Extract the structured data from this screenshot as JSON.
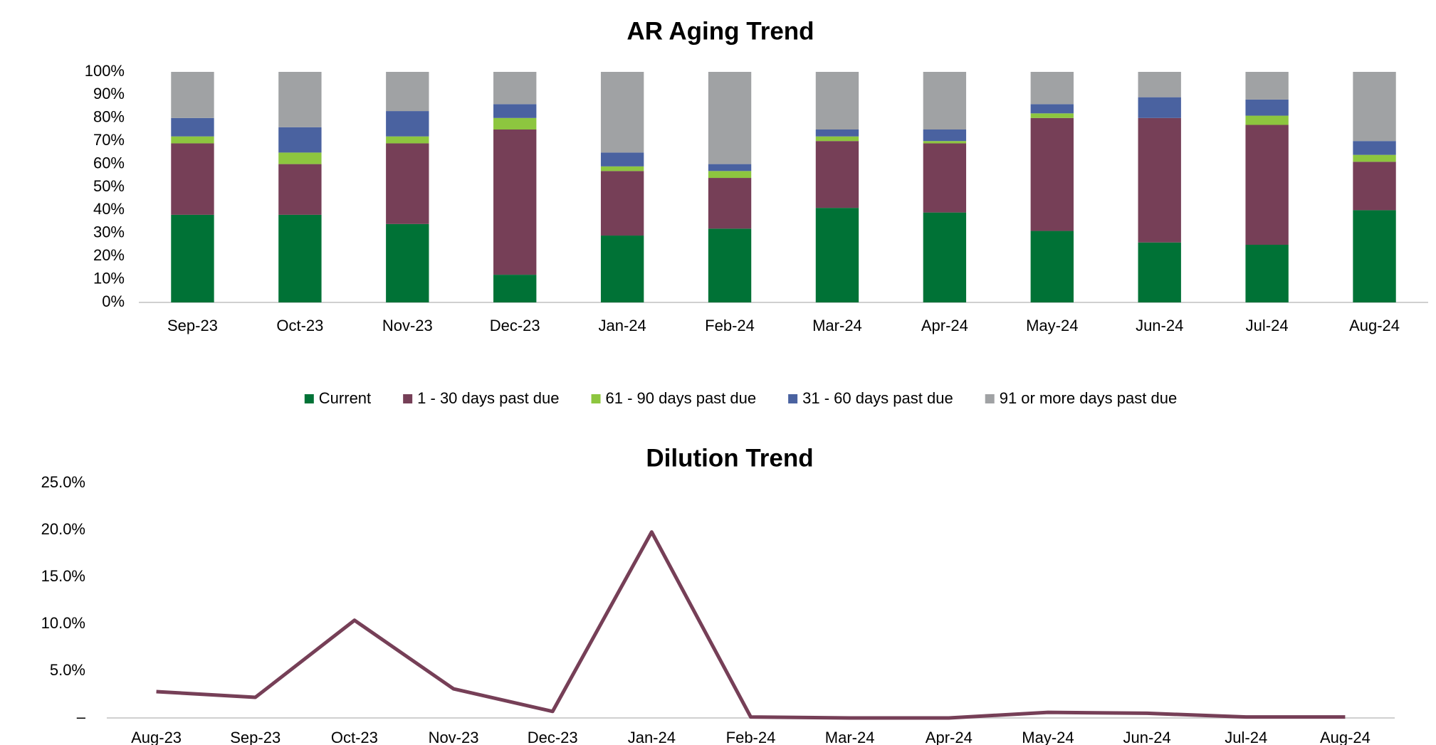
{
  "chart_data": [
    {
      "type": "bar",
      "stacked": true,
      "title": "AR Aging Trend",
      "categories": [
        "Sep-23",
        "Oct-23",
        "Nov-23",
        "Dec-23",
        "Jan-24",
        "Feb-24",
        "Mar-24",
        "Apr-24",
        "May-24",
        "Jun-24",
        "Jul-24",
        "Aug-24"
      ],
      "series": [
        {
          "name": "Current",
          "color": "#007236",
          "values": [
            38,
            38,
            34,
            12,
            29,
            32,
            41,
            39,
            31,
            26,
            25,
            40
          ]
        },
        {
          "name": "1 - 30 days past due",
          "color": "#763f57",
          "values": [
            31,
            22,
            35,
            63,
            28,
            22,
            29,
            30,
            49,
            54,
            52,
            21
          ]
        },
        {
          "name": "61 - 90 days past due",
          "color": "#8dc63f",
          "values": [
            3,
            5,
            3,
            5,
            2,
            3,
            2,
            1,
            2,
            0,
            4,
            3
          ]
        },
        {
          "name": "31 - 60 days past due",
          "color": "#4a62a0",
          "values": [
            8,
            11,
            11,
            6,
            6,
            3,
            3,
            5,
            4,
            9,
            7,
            6
          ]
        },
        {
          "name": "91 or more days past due",
          "color": "#a0a2a4",
          "values": [
            20,
            24,
            17,
            14,
            35,
            40,
            25,
            25,
            14,
            11,
            12,
            30
          ]
        }
      ],
      "ylim": [
        0,
        100
      ],
      "yticks": [
        {
          "value": 0,
          "label": "0%"
        },
        {
          "value": 10,
          "label": "10%"
        },
        {
          "value": 20,
          "label": "20%"
        },
        {
          "value": 30,
          "label": "30%"
        },
        {
          "value": 40,
          "label": "40%"
        },
        {
          "value": 50,
          "label": "50%"
        },
        {
          "value": 60,
          "label": "60%"
        },
        {
          "value": 70,
          "label": "70%"
        },
        {
          "value": 80,
          "label": "80%"
        },
        {
          "value": 90,
          "label": "90%"
        },
        {
          "value": 100,
          "label": "100%"
        }
      ],
      "legend": "bottom"
    },
    {
      "type": "line",
      "title": "Dilution Trend",
      "categories": [
        "Aug-23",
        "Sep-23",
        "Oct-23",
        "Nov-23",
        "Dec-23",
        "Jan-24",
        "Feb-24",
        "Mar-24",
        "Apr-24",
        "May-24",
        "Jun-24",
        "Jul-24",
        "Aug-24"
      ],
      "series": [
        {
          "color": "#763f57",
          "values": [
            2.8,
            2.2,
            10.4,
            3.1,
            0.7,
            19.8,
            0.1,
            0,
            0,
            0.6,
            0.5,
            0.1,
            0.1
          ]
        }
      ],
      "ylim": [
        0,
        25
      ],
      "yticks": [
        {
          "value": 0,
          "label": "–"
        },
        {
          "value": 5,
          "label": "5.0%"
        },
        {
          "value": 10,
          "label": "10.0%"
        },
        {
          "value": 15,
          "label": "15.0%"
        },
        {
          "value": 20,
          "label": "20.0%"
        },
        {
          "value": 25,
          "label": "25.0%"
        }
      ]
    }
  ]
}
